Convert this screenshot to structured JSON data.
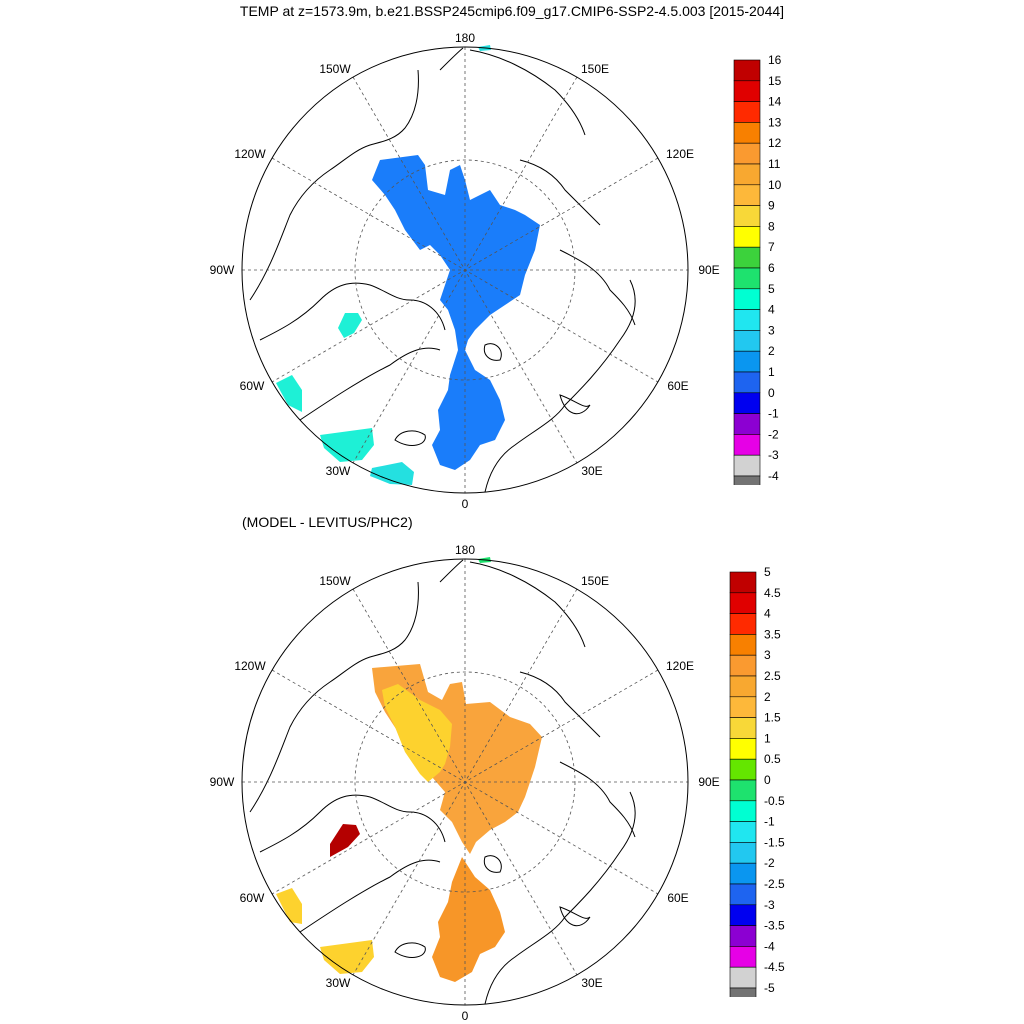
{
  "title": "TEMP at z=1573.9m, b.e21.BSSP245cmip6.f09_g17.CMIP6-SSP2-4.5.003 [2015-2044]",
  "subtitle": "(MODEL - LEVITUS/PHC2)",
  "longitude_labels": {
    "top": "180",
    "bottom": "0",
    "left": "90W",
    "right": "90E",
    "nw1": "150W",
    "nw2": "120W",
    "ne1": "150E",
    "ne2": "120E",
    "sw1": "60W",
    "sw2": "30W",
    "se1": "60E",
    "se2": "30E"
  },
  "top_colorbar": {
    "labels": [
      "16",
      "15",
      "14",
      "13",
      "12",
      "11",
      "10",
      "9",
      "8",
      "7",
      "6",
      "5",
      "4",
      "3",
      "2",
      "1",
      "0",
      "-1",
      "-2",
      "-3",
      "-4"
    ],
    "colors": [
      "#c00000",
      "#e00000",
      "#ff2a00",
      "#f88000",
      "#fa9a30",
      "#f8a830",
      "#fdb83a",
      "#f8d838",
      "#ffff00",
      "#3cd23c",
      "#1ee26e",
      "#00ffd2",
      "#20e6f0",
      "#22c8f0",
      "#0a96f0",
      "#1e64f0",
      "#0000f0",
      "#8c00d2",
      "#e600e6",
      "#d2d2d2",
      "#737373"
    ]
  },
  "bottom_colorbar": {
    "labels": [
      "5",
      "4.5",
      "4",
      "3.5",
      "3",
      "2.5",
      "2",
      "1.5",
      "1",
      "0.5",
      "0",
      "-0.5",
      "-1",
      "-1.5",
      "-2",
      "-2.5",
      "-3",
      "-3.5",
      "-4",
      "-4.5",
      "-5"
    ],
    "colors": [
      "#c00000",
      "#e00000",
      "#ff2a00",
      "#f88000",
      "#fa9a30",
      "#f8a830",
      "#fdb83a",
      "#f8d838",
      "#ffff00",
      "#64e600",
      "#1ee26e",
      "#00ffd2",
      "#20e6f0",
      "#22c8f0",
      "#0a96f0",
      "#1e64f0",
      "#0000f0",
      "#8c00d2",
      "#e600e6",
      "#d2d2d2",
      "#737373"
    ]
  },
  "fill_colors": {
    "top_main": "#1a7dfa",
    "top_cyan": "#1ef0d6",
    "top_cyan2": "#24e0e0",
    "bottom_main": "#f9a43c",
    "bottom_south": "#f79628",
    "bottom_yellow": "#fdd22e",
    "bottom_red": "#b40000",
    "bottom_green": "#1ee26e"
  }
}
